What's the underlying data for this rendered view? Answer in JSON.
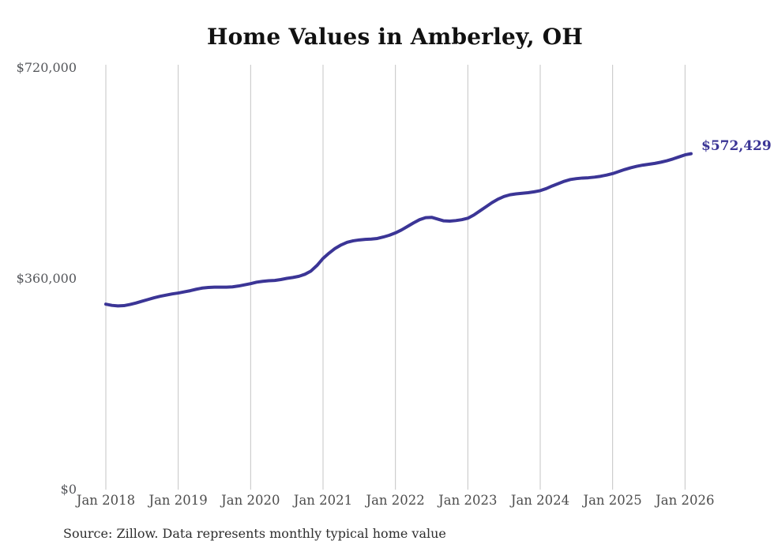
{
  "chart_data": {
    "type": "line",
    "title": "Home Values in Amberley, OH",
    "xlabel": "",
    "ylabel": "",
    "ylim": [
      0,
      720000
    ],
    "grid": "vertical-only",
    "legend": "none",
    "end_label": "$572,429",
    "latest_value": 572429,
    "y_ticks": [
      {
        "label": "$720,000",
        "value": 720000
      },
      {
        "label": "$360,000",
        "value": 360000
      },
      {
        "label": "$0",
        "value": 0
      }
    ],
    "x_ticks": [
      "Jan 2018",
      "Jan 2019",
      "Jan 2020",
      "Jan 2021",
      "Jan 2022",
      "Jan 2023",
      "Jan 2024",
      "Jan 2025",
      "Jan 2026"
    ],
    "series": [
      {
        "name": "Typical home value",
        "months": [
          "2018-01",
          "2018-02",
          "2018-03",
          "2018-04",
          "2018-05",
          "2018-06",
          "2018-07",
          "2018-08",
          "2018-09",
          "2018-10",
          "2018-11",
          "2018-12",
          "2019-01",
          "2019-02",
          "2019-03",
          "2019-04",
          "2019-05",
          "2019-06",
          "2019-07",
          "2019-08",
          "2019-09",
          "2019-10",
          "2019-11",
          "2019-12",
          "2020-01",
          "2020-02",
          "2020-03",
          "2020-04",
          "2020-05",
          "2020-06",
          "2020-07",
          "2020-08",
          "2020-09",
          "2020-10",
          "2020-11",
          "2020-12",
          "2021-01",
          "2021-02",
          "2021-03",
          "2021-04",
          "2021-05",
          "2021-06",
          "2021-07",
          "2021-08",
          "2021-09",
          "2021-10",
          "2021-11",
          "2021-12",
          "2022-01",
          "2022-02",
          "2022-03",
          "2022-04",
          "2022-05",
          "2022-06",
          "2022-07",
          "2022-08",
          "2022-09",
          "2022-10",
          "2022-11",
          "2022-12",
          "2023-01",
          "2023-02",
          "2023-03",
          "2023-04",
          "2023-05",
          "2023-06",
          "2023-07",
          "2023-08",
          "2023-09",
          "2023-10",
          "2023-11",
          "2023-12",
          "2024-01",
          "2024-02",
          "2024-03",
          "2024-04",
          "2024-05",
          "2024-06",
          "2024-07",
          "2024-08",
          "2024-09",
          "2024-10",
          "2024-11",
          "2024-12",
          "2025-01",
          "2025-02",
          "2025-03",
          "2025-04",
          "2025-05",
          "2025-06",
          "2025-07",
          "2025-08",
          "2025-09",
          "2025-10",
          "2025-11",
          "2025-12",
          "2026-01",
          "2026-02"
        ],
        "values": [
          316000,
          314000,
          313000,
          313500,
          315500,
          318000,
          321000,
          324000,
          327000,
          329500,
          331500,
          333500,
          335000,
          337000,
          339000,
          341500,
          343500,
          344500,
          345000,
          345000,
          345000,
          345500,
          347000,
          349000,
          351000,
          353500,
          355000,
          356000,
          356500,
          358000,
          360000,
          361500,
          363500,
          367000,
          372500,
          382000,
          394000,
          403000,
          411000,
          417000,
          421500,
          424000,
          425500,
          426500,
          427000,
          428000,
          430500,
          433500,
          437500,
          442500,
          448500,
          454500,
          460000,
          463500,
          464000,
          461000,
          458000,
          457500,
          458500,
          460000,
          462500,
          468000,
          475000,
          482000,
          489000,
          495000,
          499500,
          502500,
          504000,
          505000,
          506000,
          507500,
          509500,
          513000,
          517500,
          521500,
          525500,
          528500,
          530000,
          531000,
          531500,
          532500,
          534000,
          536000,
          538500,
          542000,
          545500,
          548500,
          551000,
          553000,
          554500,
          556000,
          558000,
          560500,
          563500,
          567000,
          570500,
          572429
        ]
      }
    ],
    "colors": {
      "line": "#3b3596",
      "end_label": "#3b3596",
      "gridline": "#c4c4c4",
      "title": "#111111",
      "axis_text": "#4d4d4d",
      "y_axis_text": "#54565a",
      "source_text": "#2e2e2e",
      "background": "#ffffff"
    }
  },
  "source": {
    "note": "Source: Zillow. Data represents monthly typical home value"
  }
}
